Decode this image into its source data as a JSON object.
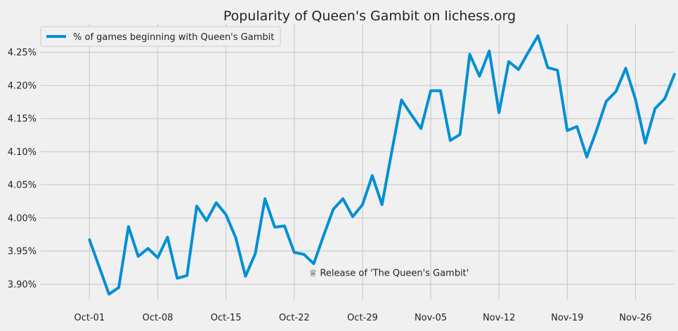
{
  "chart_data": {
    "type": "line",
    "title": "Popularity of Queen's Gambit on lichess.org",
    "xlabel": "",
    "ylabel": "",
    "grid": true,
    "legend_position": "top-left",
    "x_tick_labels": [
      "Oct-01",
      "Oct-08",
      "Oct-15",
      "Oct-22",
      "Oct-29",
      "Nov-05",
      "Nov-12",
      "Nov-19",
      "Nov-26"
    ],
    "y_tick_labels": [
      "3.90%",
      "3.95%",
      "4.00%",
      "4.05%",
      "4.10%",
      "4.15%",
      "4.20%",
      "4.25%"
    ],
    "y_ticks": [
      3.9,
      3.95,
      4.0,
      4.05,
      4.1,
      4.15,
      4.2,
      4.25
    ],
    "xlim": [
      "2020-09-26",
      "2020-11-30"
    ],
    "ylim": [
      3.877,
      4.293
    ],
    "annotation": {
      "text": "♕ Release of 'The Queen's Gambit'",
      "x": "2020-10-23",
      "y": 3.918
    },
    "series": [
      {
        "name": "% of games beginning with Queen's Gambit",
        "color": "#008fd5",
        "x": [
          "2020-10-01",
          "2020-10-02",
          "2020-10-03",
          "2020-10-04",
          "2020-10-05",
          "2020-10-06",
          "2020-10-07",
          "2020-10-08",
          "2020-10-09",
          "2020-10-10",
          "2020-10-11",
          "2020-10-12",
          "2020-10-13",
          "2020-10-14",
          "2020-10-15",
          "2020-10-16",
          "2020-10-17",
          "2020-10-18",
          "2020-10-19",
          "2020-10-20",
          "2020-10-21",
          "2020-10-22",
          "2020-10-23",
          "2020-10-24",
          "2020-10-25",
          "2020-10-26",
          "2020-10-27",
          "2020-10-28",
          "2020-10-29",
          "2020-10-30",
          "2020-10-31",
          "2020-11-01",
          "2020-11-02",
          "2020-11-03",
          "2020-11-04",
          "2020-11-05",
          "2020-11-06",
          "2020-11-07",
          "2020-11-08",
          "2020-11-09",
          "2020-11-10",
          "2020-11-11",
          "2020-11-12",
          "2020-11-13",
          "2020-11-14",
          "2020-11-15",
          "2020-11-16",
          "2020-11-17",
          "2020-11-18",
          "2020-11-19",
          "2020-11-20",
          "2020-11-21",
          "2020-11-22",
          "2020-11-23",
          "2020-11-24",
          "2020-11-25",
          "2020-11-26",
          "2020-11-27",
          "2020-11-28",
          "2020-11-29",
          "2020-11-30"
        ],
        "values": [
          3.967,
          3.926,
          3.885,
          3.895,
          3.987,
          3.942,
          3.954,
          3.94,
          3.971,
          3.909,
          3.913,
          4.018,
          3.996,
          4.023,
          4.005,
          3.97,
          3.912,
          3.946,
          4.029,
          3.986,
          3.988,
          3.948,
          3.945,
          3.931,
          3.973,
          4.013,
          4.029,
          4.002,
          4.02,
          4.064,
          4.02,
          4.1,
          4.178,
          4.156,
          4.135,
          4.192,
          4.192,
          4.117,
          4.126,
          4.247,
          4.214,
          4.252,
          4.159,
          4.236,
          4.224,
          4.25,
          4.275,
          4.227,
          4.223,
          4.132,
          4.138,
          4.092,
          4.132,
          4.176,
          4.191,
          4.226,
          4.179,
          4.113,
          4.165,
          4.18,
          4.217
        ]
      }
    ]
  }
}
